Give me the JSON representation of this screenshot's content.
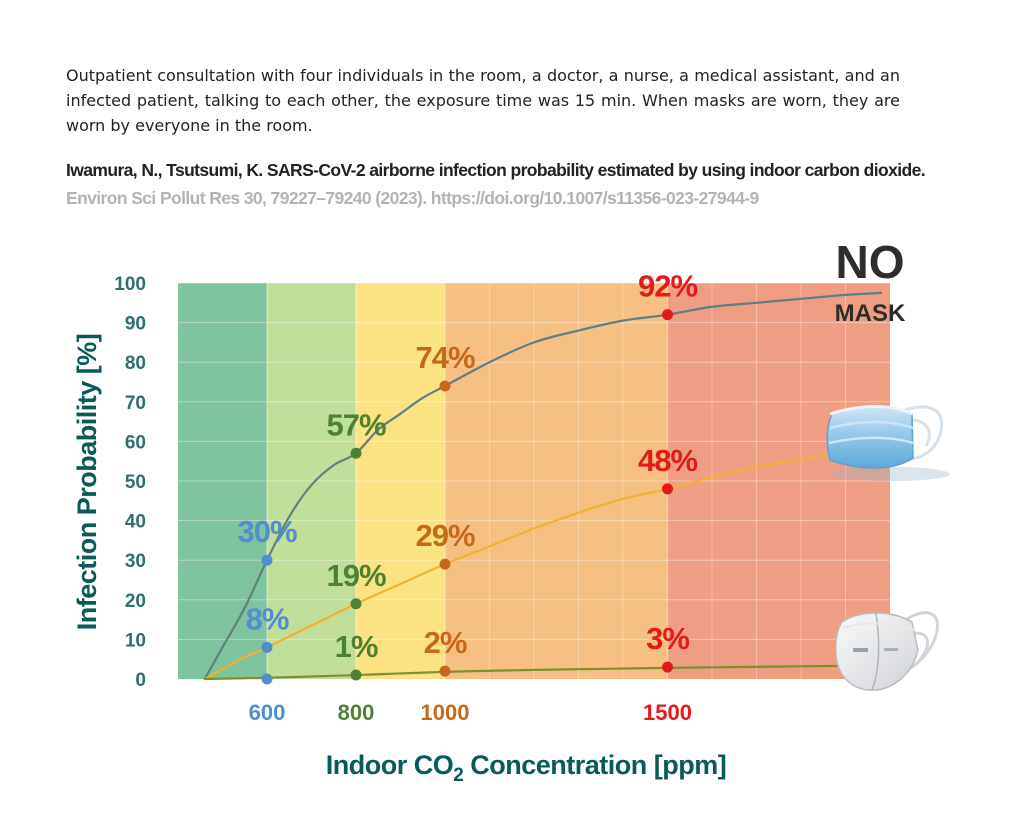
{
  "description": "Outpatient consultation with four individuals in the room, a doctor, a nurse, a medical assistant, and an infected patient, talking to each other, the exposure time was 15 min. When masks are worn, they are worn by everyone in the room.",
  "citation": {
    "line1": "Iwamura, N., Tsutsumi, K. SARS-CoV-2 airborne infection probability estimated by using indoor carbon dioxide.",
    "line2": "Environ Sci Pollut Res 30, 79227–79240 (2023). https://doi.org/10.1007/s11356-023-27944-9"
  },
  "legend": {
    "no": "NO",
    "mask": "MASK"
  },
  "colors": {
    "blue": "#4f90cc",
    "green": "#4d8232",
    "orange": "#c8681a",
    "red": "#e21a1a",
    "axis_label": "#0a5a5a",
    "tick": "#2f6f6f"
  },
  "chart_data": {
    "type": "line",
    "title": "",
    "xlabel": "Indoor CO2 Concentration [ppm]",
    "ylabel": "Infection Probability [%]",
    "ylim": [
      0,
      100
    ],
    "xlim": [
      400,
      2000
    ],
    "y_ticks": [
      0,
      10,
      20,
      30,
      40,
      50,
      60,
      70,
      80,
      90,
      100
    ],
    "x_ticks": [
      600,
      800,
      1000,
      1500
    ],
    "zones": [
      {
        "from": 400,
        "to": 600,
        "color": "#7ec49e"
      },
      {
        "from": 600,
        "to": 800,
        "color": "#c2df99"
      },
      {
        "from": 800,
        "to": 1000,
        "color": "#fbe384"
      },
      {
        "from": 1000,
        "to": 1500,
        "color": "#f5c082"
      },
      {
        "from": 1500,
        "to": 2000,
        "color": "#ef9e84"
      }
    ],
    "series": [
      {
        "name": "No mask",
        "icon": "none",
        "curve": [
          [
            460,
            0
          ],
          [
            500,
            8
          ],
          [
            550,
            18
          ],
          [
            600,
            30
          ],
          [
            650,
            41
          ],
          [
            700,
            49
          ],
          [
            750,
            54
          ],
          [
            800,
            57
          ],
          [
            850,
            63
          ],
          [
            900,
            67
          ],
          [
            950,
            71
          ],
          [
            1000,
            74
          ],
          [
            1100,
            80
          ],
          [
            1200,
            85
          ],
          [
            1300,
            88
          ],
          [
            1400,
            90.5
          ],
          [
            1500,
            92
          ],
          [
            1600,
            94
          ],
          [
            1700,
            95
          ],
          [
            1800,
            96
          ],
          [
            1900,
            97
          ],
          [
            1980,
            97.5
          ]
        ],
        "points": [
          {
            "x": 600,
            "y": 30,
            "label": "30%"
          },
          {
            "x": 800,
            "y": 57,
            "label": "57%"
          },
          {
            "x": 1000,
            "y": 74,
            "label": "74%"
          },
          {
            "x": 1500,
            "y": 92,
            "label": "92%"
          }
        ]
      },
      {
        "name": "Surgical mask",
        "icon": "surgical-mask",
        "curve": [
          [
            460,
            0
          ],
          [
            500,
            2.5
          ],
          [
            550,
            5.5
          ],
          [
            600,
            8
          ],
          [
            700,
            13.5
          ],
          [
            800,
            19
          ],
          [
            900,
            24
          ],
          [
            1000,
            29
          ],
          [
            1100,
            33.5
          ],
          [
            1200,
            38
          ],
          [
            1300,
            42
          ],
          [
            1400,
            45.5
          ],
          [
            1500,
            48
          ],
          [
            1600,
            51
          ],
          [
            1700,
            53.5
          ],
          [
            1800,
            55.5
          ],
          [
            1900,
            57
          ],
          [
            1980,
            58
          ]
        ],
        "points": [
          {
            "x": 600,
            "y": 8,
            "label": "8%"
          },
          {
            "x": 800,
            "y": 19,
            "label": "19%"
          },
          {
            "x": 1000,
            "y": 29,
            "label": "29%"
          },
          {
            "x": 1500,
            "y": 48,
            "label": "48%"
          }
        ]
      },
      {
        "name": "N95 mask",
        "icon": "n95-mask",
        "curve": [
          [
            460,
            0
          ],
          [
            600,
            0.3
          ],
          [
            800,
            1
          ],
          [
            1000,
            1.8
          ],
          [
            1200,
            2.3
          ],
          [
            1500,
            2.8
          ],
          [
            1800,
            3.2
          ],
          [
            1980,
            3.4
          ]
        ],
        "points": [
          {
            "x": 600,
            "y": 0,
            "label": ""
          },
          {
            "x": 800,
            "y": 1,
            "label": "1%"
          },
          {
            "x": 1000,
            "y": 2,
            "label": "2%"
          },
          {
            "x": 1500,
            "y": 3,
            "label": "3%"
          }
        ]
      }
    ]
  }
}
